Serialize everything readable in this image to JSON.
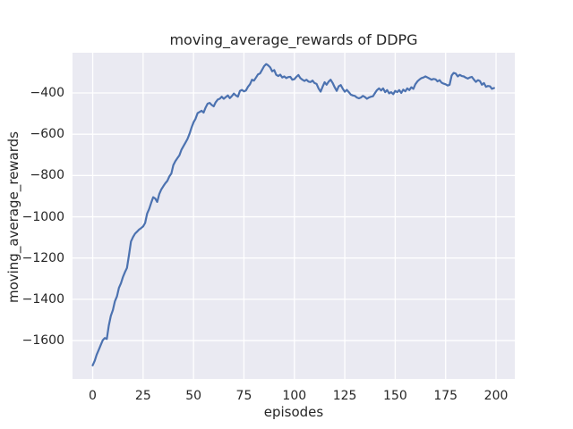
{
  "figure": {
    "title": "moving_average_rewards of DDPG",
    "xlabel": "episodes",
    "ylabel": "moving_average_rewards"
  },
  "chart_data": {
    "type": "line",
    "title": "moving_average_rewards of DDPG",
    "xlabel": "episodes",
    "ylabel": "moving_average_rewards",
    "x_ticks": [
      0,
      25,
      50,
      75,
      100,
      125,
      150,
      175,
      200
    ],
    "y_ticks": [
      -400,
      -600,
      -800,
      -1000,
      -1200,
      -1400,
      -1600
    ],
    "xlim": [
      -10,
      209.3
    ],
    "ylim": [
      -1786,
      -205
    ],
    "grid": true,
    "legend_position": "none",
    "style": "seaborn-darkgrid",
    "colors": {
      "line": "#4C72B0",
      "axes_background": "#EAEAF2",
      "grid": "#FFFFFF",
      "text": "#262626",
      "figure_background": "#FFFFFF"
    },
    "series": [
      {
        "name": "moving_average_rewards",
        "points": [
          [
            0,
            -1720
          ],
          [
            1,
            -1698
          ],
          [
            2,
            -1668
          ],
          [
            3,
            -1645
          ],
          [
            4,
            -1622
          ],
          [
            5,
            -1598
          ],
          [
            6,
            -1588
          ],
          [
            7,
            -1592
          ],
          [
            8,
            -1528
          ],
          [
            9,
            -1480
          ],
          [
            10,
            -1452
          ],
          [
            11,
            -1410
          ],
          [
            12,
            -1386
          ],
          [
            13,
            -1345
          ],
          [
            14,
            -1322
          ],
          [
            15,
            -1292
          ],
          [
            16,
            -1268
          ],
          [
            17,
            -1248
          ],
          [
            18,
            -1185
          ],
          [
            19,
            -1120
          ],
          [
            20,
            -1098
          ],
          [
            21,
            -1082
          ],
          [
            22,
            -1072
          ],
          [
            23,
            -1062
          ],
          [
            24,
            -1055
          ],
          [
            25,
            -1047
          ],
          [
            26,
            -1030
          ],
          [
            27,
            -985
          ],
          [
            28,
            -962
          ],
          [
            29,
            -932
          ],
          [
            30,
            -905
          ],
          [
            31,
            -912
          ],
          [
            32,
            -928
          ],
          [
            33,
            -890
          ],
          [
            34,
            -868
          ],
          [
            35,
            -852
          ],
          [
            36,
            -838
          ],
          [
            37,
            -826
          ],
          [
            38,
            -805
          ],
          [
            39,
            -790
          ],
          [
            40,
            -750
          ],
          [
            41,
            -730
          ],
          [
            42,
            -716
          ],
          [
            43,
            -702
          ],
          [
            44,
            -676
          ],
          [
            45,
            -658
          ],
          [
            46,
            -641
          ],
          [
            47,
            -623
          ],
          [
            48,
            -598
          ],
          [
            49,
            -568
          ],
          [
            50,
            -542
          ],
          [
            51,
            -525
          ],
          [
            52,
            -498
          ],
          [
            53,
            -492
          ],
          [
            54,
            -486
          ],
          [
            55,
            -495
          ],
          [
            56,
            -470
          ],
          [
            57,
            -452
          ],
          [
            58,
            -448
          ],
          [
            59,
            -458
          ],
          [
            60,
            -465
          ],
          [
            61,
            -445
          ],
          [
            62,
            -432
          ],
          [
            63,
            -428
          ],
          [
            64,
            -418
          ],
          [
            65,
            -428
          ],
          [
            66,
            -420
          ],
          [
            67,
            -412
          ],
          [
            68,
            -425
          ],
          [
            69,
            -415
          ],
          [
            70,
            -403
          ],
          [
            71,
            -412
          ],
          [
            72,
            -418
          ],
          [
            73,
            -390
          ],
          [
            74,
            -385
          ],
          [
            75,
            -392
          ],
          [
            76,
            -388
          ],
          [
            77,
            -370
          ],
          [
            78,
            -358
          ],
          [
            79,
            -336
          ],
          [
            80,
            -340
          ],
          [
            81,
            -325
          ],
          [
            82,
            -310
          ],
          [
            83,
            -305
          ],
          [
            84,
            -288
          ],
          [
            85,
            -270
          ],
          [
            86,
            -260
          ],
          [
            87,
            -266
          ],
          [
            88,
            -276
          ],
          [
            89,
            -295
          ],
          [
            90,
            -289
          ],
          [
            91,
            -312
          ],
          [
            92,
            -318
          ],
          [
            93,
            -311
          ],
          [
            94,
            -325
          ],
          [
            95,
            -320
          ],
          [
            96,
            -328
          ],
          [
            97,
            -323
          ],
          [
            98,
            -322
          ],
          [
            99,
            -336
          ],
          [
            100,
            -333
          ],
          [
            101,
            -322
          ],
          [
            102,
            -313
          ],
          [
            103,
            -328
          ],
          [
            104,
            -336
          ],
          [
            105,
            -342
          ],
          [
            106,
            -336
          ],
          [
            107,
            -345
          ],
          [
            108,
            -347
          ],
          [
            109,
            -340
          ],
          [
            110,
            -352
          ],
          [
            111,
            -356
          ],
          [
            112,
            -378
          ],
          [
            113,
            -394
          ],
          [
            114,
            -370
          ],
          [
            115,
            -348
          ],
          [
            116,
            -360
          ],
          [
            117,
            -345
          ],
          [
            118,
            -336
          ],
          [
            119,
            -352
          ],
          [
            120,
            -372
          ],
          [
            121,
            -390
          ],
          [
            122,
            -368
          ],
          [
            123,
            -362
          ],
          [
            124,
            -380
          ],
          [
            125,
            -394
          ],
          [
            126,
            -385
          ],
          [
            127,
            -396
          ],
          [
            128,
            -408
          ],
          [
            129,
            -412
          ],
          [
            130,
            -414
          ],
          [
            131,
            -422
          ],
          [
            132,
            -426
          ],
          [
            133,
            -422
          ],
          [
            134,
            -414
          ],
          [
            135,
            -420
          ],
          [
            136,
            -428
          ],
          [
            137,
            -422
          ],
          [
            138,
            -418
          ],
          [
            139,
            -416
          ],
          [
            140,
            -400
          ],
          [
            141,
            -386
          ],
          [
            142,
            -378
          ],
          [
            143,
            -388
          ],
          [
            144,
            -378
          ],
          [
            145,
            -396
          ],
          [
            146,
            -386
          ],
          [
            147,
            -402
          ],
          [
            148,
            -396
          ],
          [
            149,
            -406
          ],
          [
            150,
            -390
          ],
          [
            151,
            -396
          ],
          [
            152,
            -386
          ],
          [
            153,
            -400
          ],
          [
            154,
            -384
          ],
          [
            155,
            -392
          ],
          [
            156,
            -378
          ],
          [
            157,
            -386
          ],
          [
            158,
            -372
          ],
          [
            159,
            -380
          ],
          [
            160,
            -358
          ],
          [
            161,
            -344
          ],
          [
            162,
            -335
          ],
          [
            163,
            -328
          ],
          [
            164,
            -325
          ],
          [
            165,
            -320
          ],
          [
            166,
            -325
          ],
          [
            167,
            -330
          ],
          [
            168,
            -336
          ],
          [
            169,
            -332
          ],
          [
            170,
            -334
          ],
          [
            171,
            -344
          ],
          [
            172,
            -338
          ],
          [
            173,
            -350
          ],
          [
            174,
            -355
          ],
          [
            175,
            -358
          ],
          [
            176,
            -364
          ],
          [
            177,
            -360
          ],
          [
            178,
            -315
          ],
          [
            179,
            -303
          ],
          [
            180,
            -306
          ],
          [
            181,
            -320
          ],
          [
            182,
            -312
          ],
          [
            183,
            -318
          ],
          [
            184,
            -320
          ],
          [
            185,
            -326
          ],
          [
            186,
            -330
          ],
          [
            187,
            -325
          ],
          [
            188,
            -322
          ],
          [
            189,
            -335
          ],
          [
            190,
            -346
          ],
          [
            191,
            -338
          ],
          [
            192,
            -342
          ],
          [
            193,
            -360
          ],
          [
            194,
            -352
          ],
          [
            195,
            -370
          ],
          [
            196,
            -366
          ],
          [
            197,
            -368
          ],
          [
            198,
            -380
          ],
          [
            199,
            -376
          ]
        ]
      }
    ]
  }
}
